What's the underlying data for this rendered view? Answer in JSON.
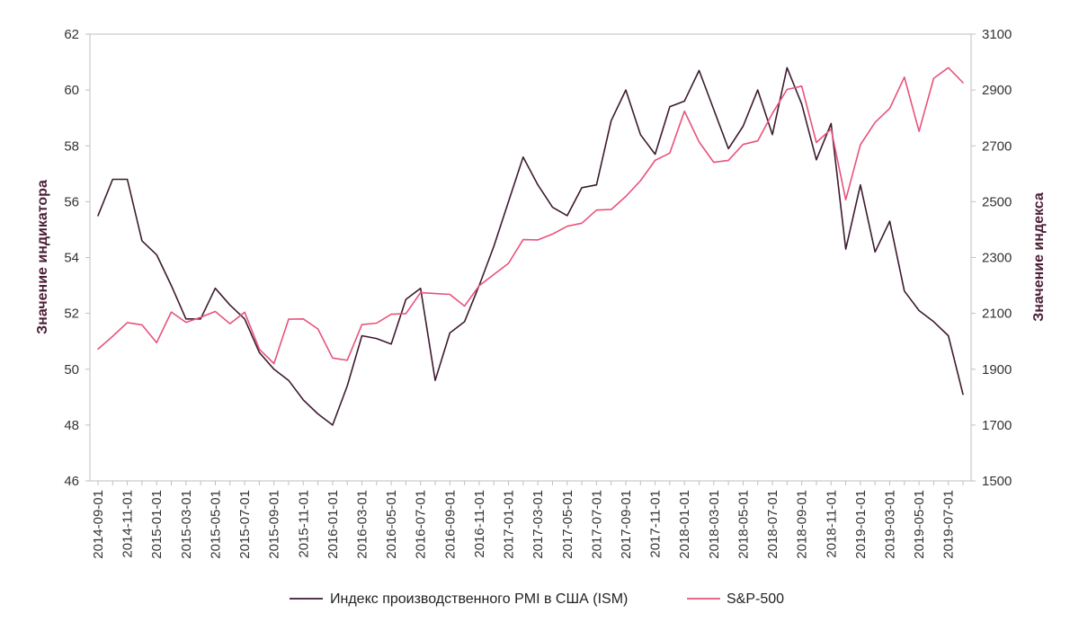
{
  "chart_data": {
    "type": "line",
    "y_left_label": "Значение индикатора",
    "y_right_label": "Значение индекса",
    "y_left_range": [
      46,
      62
    ],
    "y_right_range": [
      1500,
      3100
    ],
    "y_left_ticks": [
      "46",
      "48",
      "50",
      "52",
      "54",
      "56",
      "58",
      "60",
      "62"
    ],
    "y_right_ticks": [
      "1500",
      "1700",
      "1900",
      "2100",
      "2300",
      "2500",
      "2700",
      "2900",
      "3100"
    ],
    "x_tick_labels": [
      "2014-09-01",
      "2014-11-01",
      "2015-01-01",
      "2015-03-01",
      "2015-05-01",
      "2015-07-01",
      "2015-09-01",
      "2015-11-01",
      "2016-01-01",
      "2016-03-01",
      "2016-05-01",
      "2016-07-01",
      "2016-09-01",
      "2016-11-01",
      "2017-01-01",
      "2017-03-01",
      "2017-05-01",
      "2017-07-01",
      "2017-09-01",
      "2017-11-01",
      "2018-01-01",
      "2018-03-01",
      "2018-05-01",
      "2018-07-01",
      "2018-09-01",
      "2018-11-01",
      "2019-01-01",
      "2019-03-01",
      "2019-05-01",
      "2019-07-01"
    ],
    "x": [
      "2014-09-01",
      "2014-10-01",
      "2014-11-01",
      "2014-12-01",
      "2015-01-01",
      "2015-02-01",
      "2015-03-01",
      "2015-04-01",
      "2015-05-01",
      "2015-06-01",
      "2015-07-01",
      "2015-08-01",
      "2015-09-01",
      "2015-10-01",
      "2015-11-01",
      "2015-12-01",
      "2016-01-01",
      "2016-02-01",
      "2016-03-01",
      "2016-04-01",
      "2016-05-01",
      "2016-06-01",
      "2016-07-01",
      "2016-08-01",
      "2016-09-01",
      "2016-10-01",
      "2016-11-01",
      "2016-12-01",
      "2017-01-01",
      "2017-02-01",
      "2017-03-01",
      "2017-04-01",
      "2017-05-01",
      "2017-06-01",
      "2017-07-01",
      "2017-08-01",
      "2017-09-01",
      "2017-10-01",
      "2017-11-01",
      "2017-12-01",
      "2018-01-01",
      "2018-02-01",
      "2018-03-01",
      "2018-04-01",
      "2018-05-01",
      "2018-06-01",
      "2018-07-01",
      "2018-08-01",
      "2018-09-01",
      "2018-10-01",
      "2018-11-01",
      "2018-12-01",
      "2019-01-01",
      "2019-02-01",
      "2019-03-01",
      "2019-04-01",
      "2019-05-01",
      "2019-06-01",
      "2019-07-01",
      "2019-08-01"
    ],
    "series": [
      {
        "name": "Индекс производственного PMI в США (ISM)",
        "axis": "left",
        "color": "#3d1a30",
        "values": [
          55.5,
          56.8,
          56.8,
          54.6,
          54.1,
          53.0,
          51.8,
          51.8,
          52.9,
          52.3,
          51.8,
          50.6,
          50.0,
          49.6,
          48.9,
          48.4,
          48.0,
          49.4,
          51.2,
          51.1,
          50.9,
          52.5,
          52.9,
          49.6,
          51.3,
          51.7,
          53.0,
          54.4,
          56.0,
          57.6,
          56.6,
          55.8,
          55.5,
          56.5,
          56.6,
          58.9,
          60.0,
          58.4,
          57.7,
          59.4,
          59.6,
          60.7,
          59.3,
          57.9,
          58.7,
          60.0,
          58.4,
          60.8,
          59.5,
          57.5,
          58.8,
          54.3,
          56.6,
          54.2,
          55.3,
          52.8,
          52.1,
          51.7,
          51.2,
          49.1
        ]
      },
      {
        "name": "S&P-500",
        "axis": "right",
        "color": "#e8537a",
        "values": [
          1972,
          2018,
          2067,
          2059,
          1995,
          2105,
          2068,
          2086,
          2107,
          2063,
          2104,
          1972,
          1920,
          2079,
          2080,
          2044,
          1940,
          1932,
          2060,
          2065,
          2097,
          2099,
          2174,
          2171,
          2168,
          2126,
          2199,
          2239,
          2279,
          2364,
          2363,
          2384,
          2412,
          2423,
          2470,
          2472,
          2519,
          2575,
          2648,
          2674,
          2824,
          2714,
          2641,
          2648,
          2705,
          2718,
          2816,
          2902,
          2914,
          2712,
          2760,
          2507,
          2704,
          2784,
          2834,
          2946,
          2752,
          2942,
          2980,
          2926
        ]
      }
    ],
    "legend_position": "bottom-center",
    "grid": false
  }
}
